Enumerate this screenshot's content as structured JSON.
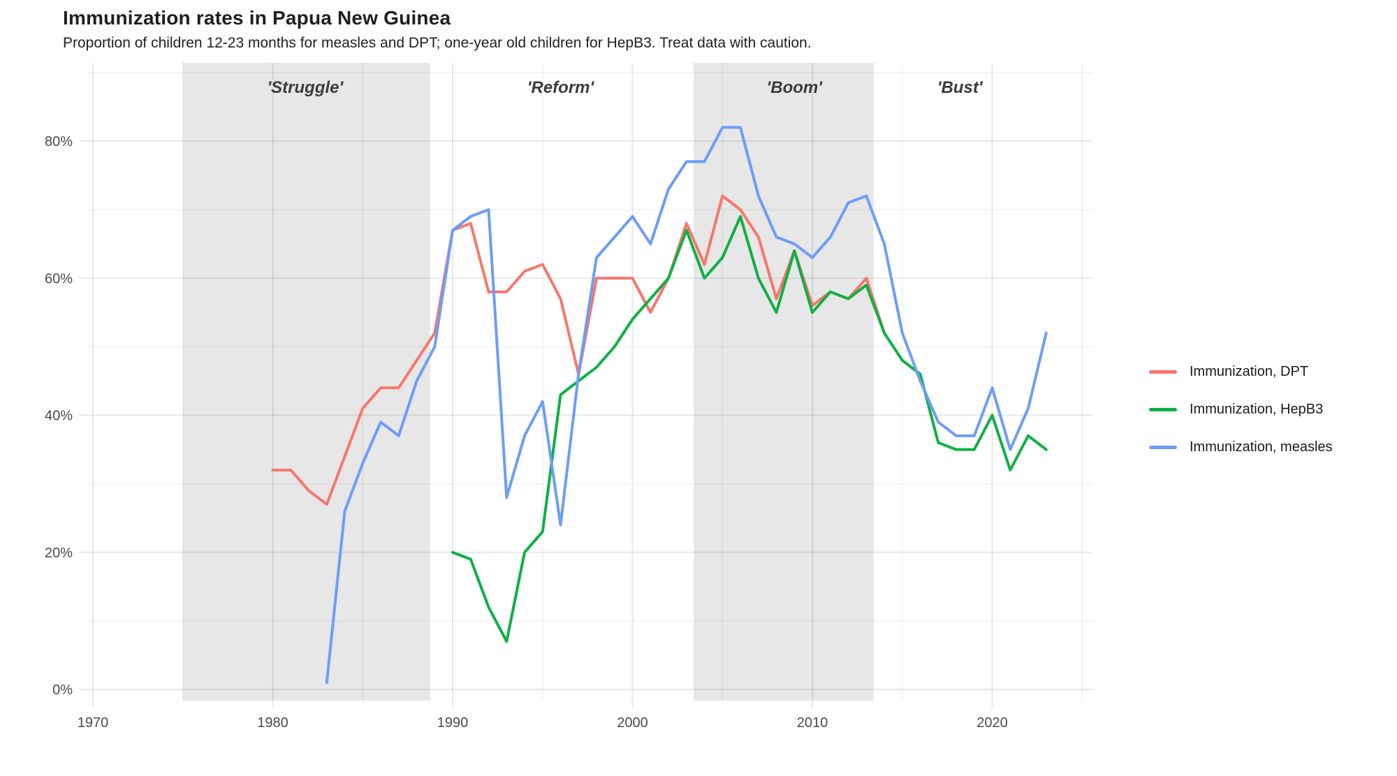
{
  "title": "Immunization rates in Papua New Guinea",
  "subtitle": "Proportion of children 12-23 months for measles and DPT; one-year old children for HepB3. Treat data with caution.",
  "colors": {
    "dpt": "#F8766D",
    "hepb3": "#0FB045",
    "measles": "#6D9DF8",
    "band": "#E7E7E7",
    "grid_minor": "rgba(0,0,0,0.055)",
    "grid_major": "rgba(0,0,0,0.085)",
    "tick_label": "#4a4a4a",
    "era_label": "#3c3c3c"
  },
  "legend": {
    "items": [
      {
        "key": "dpt",
        "label": "Immunization, DPT"
      },
      {
        "key": "hepb3",
        "label": "Immunization, HepB3"
      },
      {
        "key": "measles",
        "label": "Immunization, measles"
      }
    ]
  },
  "chart_data": {
    "type": "line",
    "title": "Immunization rates in Papua New Guinea",
    "xlabel": "",
    "ylabel": "",
    "x_range": [
      1968.7,
      2025.7
    ],
    "y_range": [
      -1.6,
      91.4
    ],
    "x_ticks": [
      1970,
      1980,
      1990,
      2000,
      2010,
      2020
    ],
    "y_ticks": [
      0,
      20,
      40,
      60,
      80
    ],
    "y_tick_suffix": "%",
    "grid": "on",
    "legend_position": "right",
    "annotations": [
      {
        "key": "struggle",
        "label": "'Struggle'",
        "label_x": 1981.8,
        "band": [
          1975.0,
          1988.75
        ]
      },
      {
        "key": "reform",
        "label": "'Reform'",
        "label_x": 1996.0,
        "band": null
      },
      {
        "key": "boom",
        "label": "'Boom'",
        "label_x": 2009.0,
        "band": [
          2003.4,
          2013.4
        ]
      },
      {
        "key": "bust",
        "label": "'Bust'",
        "label_x": 2018.2,
        "band": null
      }
    ],
    "series": [
      {
        "key": "dpt",
        "name": "Immunization, DPT",
        "points": [
          [
            1980,
            32
          ],
          [
            1981,
            32
          ],
          [
            1982,
            29
          ],
          [
            1983,
            27
          ],
          [
            1984,
            34
          ],
          [
            1985,
            41
          ],
          [
            1986,
            44
          ],
          [
            1987,
            44
          ],
          [
            1988,
            48
          ],
          [
            1989,
            52
          ],
          [
            1990,
            67
          ],
          [
            1991,
            68
          ],
          [
            1992,
            58
          ],
          [
            1993,
            58
          ],
          [
            1994,
            61
          ],
          [
            1995,
            62
          ],
          [
            1996,
            57
          ],
          [
            1997,
            46
          ],
          [
            1998,
            60
          ],
          [
            1999,
            60
          ],
          [
            2000,
            60
          ],
          [
            2001,
            55
          ],
          [
            2002,
            60
          ],
          [
            2003,
            68
          ],
          [
            2004,
            62
          ],
          [
            2005,
            72
          ],
          [
            2006,
            70
          ],
          [
            2007,
            66
          ],
          [
            2008,
            57
          ],
          [
            2009,
            64
          ],
          [
            2010,
            56
          ],
          [
            2011,
            58
          ],
          [
            2012,
            57
          ],
          [
            2013,
            60
          ],
          [
            2014,
            52
          ]
        ]
      },
      {
        "key": "hepb3",
        "name": "Immunization, HepB3",
        "points": [
          [
            1990,
            20
          ],
          [
            1991,
            19
          ],
          [
            1992,
            12
          ],
          [
            1993,
            7
          ],
          [
            1994,
            20
          ],
          [
            1995,
            23
          ],
          [
            1996,
            43
          ],
          [
            1997,
            45
          ],
          [
            1998,
            47
          ],
          [
            1999,
            50
          ],
          [
            2000,
            54
          ],
          [
            2001,
            57
          ],
          [
            2002,
            60
          ],
          [
            2003,
            67
          ],
          [
            2004,
            60
          ],
          [
            2005,
            63
          ],
          [
            2006,
            69
          ],
          [
            2007,
            60
          ],
          [
            2008,
            55
          ],
          [
            2009,
            64
          ],
          [
            2010,
            55
          ],
          [
            2011,
            58
          ],
          [
            2012,
            57
          ],
          [
            2013,
            59
          ],
          [
            2014,
            52
          ],
          [
            2015,
            48
          ],
          [
            2016,
            46
          ],
          [
            2017,
            36
          ],
          [
            2018,
            35
          ],
          [
            2019,
            35
          ],
          [
            2020,
            40
          ],
          [
            2021,
            32
          ],
          [
            2022,
            37
          ],
          [
            2023,
            35
          ]
        ]
      },
      {
        "key": "measles",
        "name": "Immunization, measles",
        "points": [
          [
            1983,
            1
          ],
          [
            1984,
            26
          ],
          [
            1985,
            33
          ],
          [
            1986,
            39
          ],
          [
            1987,
            37
          ],
          [
            1988,
            45
          ],
          [
            1989,
            50
          ],
          [
            1990,
            67
          ],
          [
            1991,
            69
          ],
          [
            1992,
            70
          ],
          [
            1993,
            28
          ],
          [
            1994,
            37
          ],
          [
            1995,
            42
          ],
          [
            1996,
            24
          ],
          [
            1997,
            46
          ],
          [
            1998,
            63
          ],
          [
            1999,
            66
          ],
          [
            2000,
            69
          ],
          [
            2001,
            65
          ],
          [
            2002,
            73
          ],
          [
            2003,
            77
          ],
          [
            2004,
            77
          ],
          [
            2005,
            82
          ],
          [
            2006,
            82
          ],
          [
            2007,
            72
          ],
          [
            2008,
            66
          ],
          [
            2009,
            65
          ],
          [
            2010,
            63
          ],
          [
            2011,
            66
          ],
          [
            2012,
            71
          ],
          [
            2013,
            72
          ],
          [
            2014,
            65
          ],
          [
            2015,
            52
          ],
          [
            2016,
            45
          ],
          [
            2017,
            39
          ],
          [
            2018,
            37
          ],
          [
            2019,
            37
          ],
          [
            2020,
            44
          ],
          [
            2021,
            35
          ],
          [
            2022,
            41
          ],
          [
            2023,
            52
          ]
        ]
      }
    ]
  }
}
